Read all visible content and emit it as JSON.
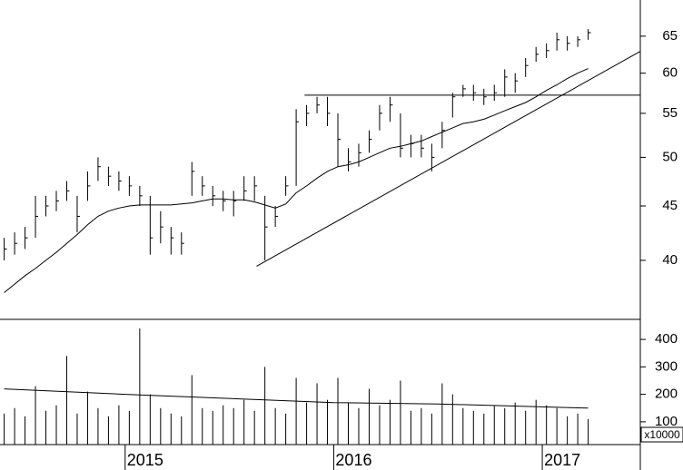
{
  "chart_data": [
    {
      "type": "ohlc",
      "log_scale": true,
      "xlim": [
        2014.4,
        2017.47
      ],
      "ylim": [
        35.2,
        70.3
      ],
      "yticks": [
        40,
        45,
        50,
        55,
        60,
        65
      ],
      "x": [
        2014.42,
        2014.47,
        2014.52,
        2014.57,
        2014.62,
        2014.67,
        2014.72,
        2014.77,
        2014.82,
        2014.87,
        2014.92,
        2014.97,
        2015.02,
        2015.07,
        2015.12,
        2015.17,
        2015.22,
        2015.27,
        2015.32,
        2015.37,
        2015.42,
        2015.47,
        2015.52,
        2015.57,
        2015.62,
        2015.67,
        2015.72,
        2015.77,
        2015.82,
        2015.87,
        2015.92,
        2015.97,
        2016.02,
        2016.07,
        2016.12,
        2016.17,
        2016.22,
        2016.27,
        2016.32,
        2016.37,
        2016.42,
        2016.47,
        2016.52,
        2016.57,
        2016.62,
        2016.67,
        2016.72,
        2016.77,
        2016.82,
        2016.87,
        2016.92,
        2016.97,
        2017.02,
        2017.07,
        2017.12,
        2017.17,
        2017.22
      ],
      "high": [
        42,
        42.5,
        43,
        46,
        46,
        46.5,
        47.5,
        46,
        48.5,
        50,
        49,
        48.5,
        48,
        47,
        46,
        44.5,
        43,
        42.5,
        49.5,
        48,
        47,
        46.5,
        46.5,
        48,
        48,
        46,
        45,
        48,
        55.5,
        56,
        57,
        57,
        55,
        51,
        51.5,
        53,
        56,
        57,
        55,
        52.5,
        52.5,
        51.5,
        54,
        57.5,
        58.5,
        58.5,
        58,
        58.5,
        60.5,
        60,
        62,
        63.5,
        64,
        65.5,
        65,
        65,
        66
      ],
      "low": [
        40,
        40.5,
        41,
        42,
        44,
        44.5,
        45.5,
        42.5,
        45.5,
        47.5,
        47,
        46.5,
        46,
        45,
        40.5,
        41.5,
        40.5,
        40.5,
        46,
        46,
        45,
        44.5,
        44,
        45.5,
        45.5,
        40,
        43,
        46,
        47,
        53.5,
        55,
        53.5,
        49,
        48.5,
        49,
        50.5,
        53,
        54,
        50,
        50,
        50,
        48.5,
        51,
        54.5,
        57,
        56.5,
        56,
        56.5,
        57,
        57.5,
        59.5,
        61.5,
        62,
        63,
        63,
        63.5,
        64.5
      ],
      "close": [
        41,
        41.5,
        42,
        44,
        45,
        45.5,
        46.5,
        44,
        47,
        49,
        48,
        47.5,
        47,
        46,
        42,
        43,
        42,
        41.5,
        48.5,
        47,
        46,
        45.5,
        45.5,
        46.5,
        47,
        43,
        44,
        47,
        54,
        55,
        56,
        55,
        52,
        49.5,
        50.5,
        52,
        55,
        56,
        51,
        51.5,
        51,
        50,
        53,
        57,
        58,
        57.5,
        57,
        57.5,
        59.5,
        59,
        61,
        62.5,
        63,
        64.5,
        64,
        64.5,
        65.5
      ],
      "ma": [
        37.3,
        38,
        38.7,
        39.3,
        40,
        40.7,
        41.5,
        42.3,
        43.2,
        44,
        44.5,
        44.8,
        45,
        45.1,
        45.1,
        45.1,
        45.1,
        45.2,
        45.3,
        45.5,
        45.7,
        45.7,
        45.6,
        45.6,
        45.4,
        45.1,
        44.8,
        45.2,
        46.3,
        47,
        47.8,
        48.5,
        49,
        49.2,
        49.5,
        50,
        50.5,
        51,
        51.2,
        51.5,
        51.8,
        52.3,
        52.8,
        53.3,
        53.8,
        54,
        54.3,
        54.8,
        55.3,
        55.8,
        56.3,
        57,
        57.8,
        58.5,
        59.3,
        60,
        60.6
      ],
      "lines": [
        {
          "x": [
            2015.63,
            2017.47
          ],
          "values": [
            39.5,
            62.9
          ]
        },
        {
          "x": [
            2015.86,
            2017.47
          ],
          "values": [
            57.2,
            57.2
          ]
        }
      ]
    },
    {
      "type": "bar",
      "unit": "x10000",
      "xlim": [
        2014.4,
        2017.47
      ],
      "ylim": [
        17,
        473
      ],
      "yticks": [
        100,
        200,
        300,
        400
      ],
      "xticks": [
        2015,
        2016,
        2017
      ],
      "x": [
        2014.42,
        2014.47,
        2014.52,
        2014.57,
        2014.62,
        2014.67,
        2014.72,
        2014.77,
        2014.82,
        2014.87,
        2014.92,
        2014.97,
        2015.02,
        2015.07,
        2015.12,
        2015.17,
        2015.22,
        2015.27,
        2015.32,
        2015.37,
        2015.42,
        2015.47,
        2015.52,
        2015.57,
        2015.62,
        2015.67,
        2015.72,
        2015.77,
        2015.82,
        2015.87,
        2015.92,
        2015.97,
        2016.02,
        2016.07,
        2016.12,
        2016.17,
        2016.22,
        2016.27,
        2016.32,
        2016.37,
        2016.42,
        2016.47,
        2016.52,
        2016.57,
        2016.62,
        2016.67,
        2016.72,
        2016.77,
        2016.82,
        2016.87,
        2016.92,
        2016.97,
        2017.02,
        2017.07,
        2017.12,
        2017.17,
        2017.22
      ],
      "values": [
        130,
        150,
        120,
        230,
        140,
        160,
        340,
        130,
        210,
        150,
        120,
        160,
        140,
        440,
        200,
        150,
        130,
        120,
        270,
        150,
        140,
        160,
        150,
        180,
        140,
        300,
        150,
        130,
        260,
        170,
        240,
        180,
        260,
        170,
        150,
        220,
        160,
        180,
        250,
        140,
        150,
        130,
        240,
        200,
        150,
        140,
        130,
        160,
        150,
        170,
        140,
        180,
        160,
        150,
        120,
        130,
        110
      ],
      "ma": {
        "x": [
          2014.42,
          2015.0,
          2016.0,
          2016.5,
          2017.22
        ],
        "values": [
          220,
          200,
          170,
          165,
          150
        ]
      }
    }
  ]
}
